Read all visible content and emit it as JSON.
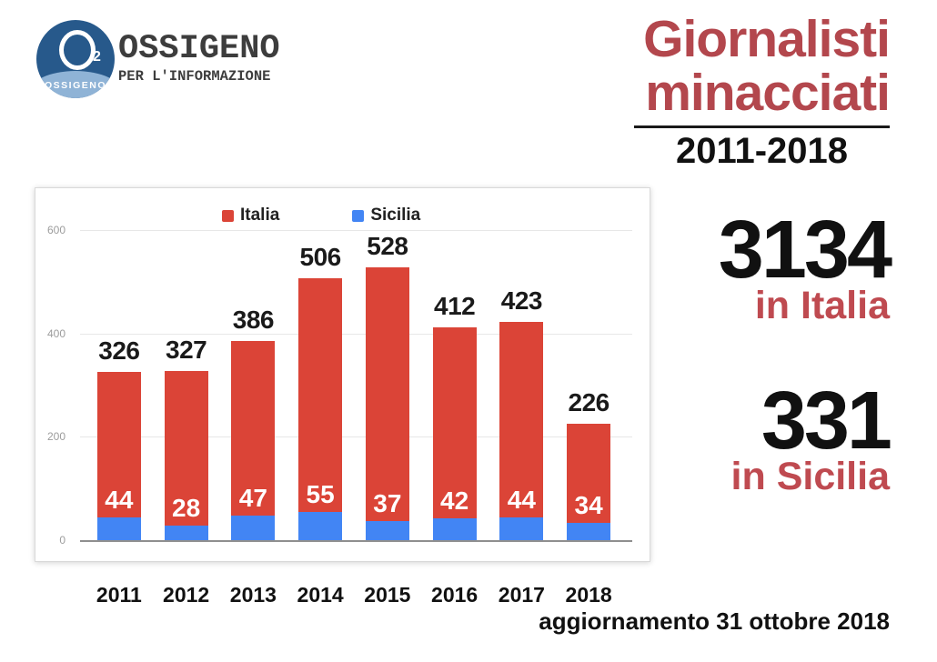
{
  "logo": {
    "symbol_sub": "2",
    "symbol_caption": "OSSIGENO",
    "wordmark": "OSSIGENO",
    "tagline": "PER L'INFORMAZIONE"
  },
  "title": {
    "line1": "Giornalisti",
    "line2": "minacciati",
    "period": "2011-2018"
  },
  "stats": [
    {
      "value": "3134",
      "label": "in Italia"
    },
    {
      "value": "331",
      "label": "in Sicilia"
    }
  ],
  "footer": {
    "update": "aggiornamento 31 ottobre 2018"
  },
  "colors": {
    "title_red": "#b3474d",
    "stat_label_red": "#bf4a50",
    "chart_red": "#db4437",
    "chart_blue": "#4285f4",
    "logo_dark_blue": "#27598b",
    "logo_light_blue": "#8fb3d6",
    "axis_gray": "#9c9c9c"
  },
  "chart_data": {
    "type": "bar",
    "stacked": true,
    "categories": [
      "2011",
      "2012",
      "2013",
      "2014",
      "2015",
      "2016",
      "2017",
      "2018"
    ],
    "series": [
      {
        "name": "Italia",
        "color": "#db4437",
        "values": [
          326,
          327,
          386,
          506,
          528,
          412,
          423,
          226
        ],
        "label_position": "above-bar"
      },
      {
        "name": "Sicilia",
        "color": "#4285f4",
        "values": [
          44,
          28,
          47,
          55,
          37,
          42,
          44,
          34
        ],
        "label_position": "inside-white-above-segment"
      }
    ],
    "note": "Sicilia drawn as bottom blue segment; total bar height equals the Italia value (Sicilia included in total).",
    "ylim": [
      0,
      600
    ],
    "yticks": [
      0,
      200,
      400,
      600
    ],
    "grid": true,
    "legend_position": "top"
  }
}
